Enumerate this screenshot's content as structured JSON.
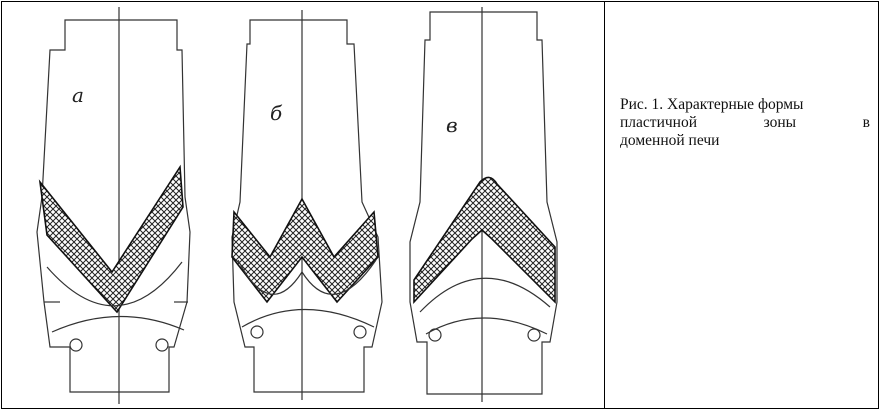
{
  "caption": {
    "line1": "Рис. 1. Характерные формы",
    "line2": "пластичной зоны в",
    "line3": "доменной печи"
  },
  "figures": [
    {
      "letter": "а"
    },
    {
      "letter": "б"
    },
    {
      "letter": "в"
    }
  ]
}
